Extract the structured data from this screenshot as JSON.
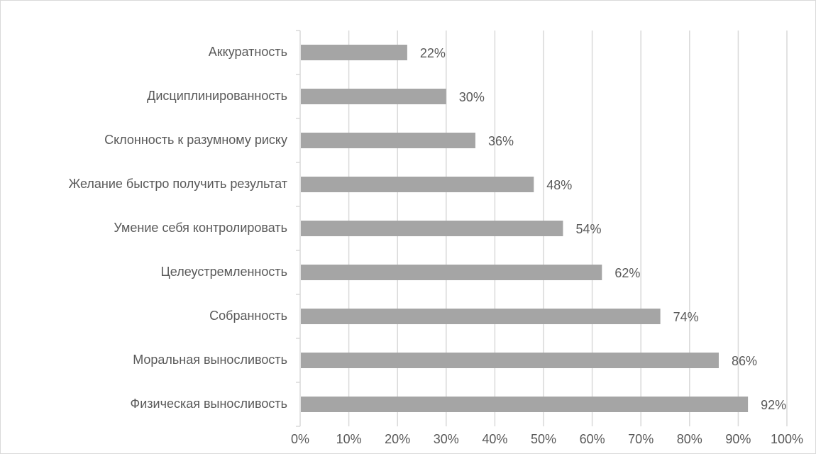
{
  "chart_data": {
    "type": "bar",
    "orientation": "horizontal",
    "categories": [
      "Аккуратность",
      "Дисциплинированность",
      "Склонность к разумному риску",
      "Желание быстро получить результат",
      "Умение себя контролировать",
      "Целеустремленность",
      "Собранность",
      "Моральная выносливость",
      "Физическая выносливость"
    ],
    "values": [
      22,
      30,
      36,
      48,
      54,
      62,
      74,
      86,
      92
    ],
    "data_labels": [
      "22%",
      "30%",
      "36%",
      "48%",
      "54%",
      "62%",
      "74%",
      "86%",
      "92%"
    ],
    "xlim": [
      0,
      100
    ],
    "x_ticks": [
      0,
      10,
      20,
      30,
      40,
      50,
      60,
      70,
      80,
      90,
      100
    ],
    "x_tick_labels": [
      "0%",
      "10%",
      "20%",
      "30%",
      "40%",
      "50%",
      "60%",
      "70%",
      "80%",
      "90%",
      "100%"
    ],
    "grid": "vertical",
    "legend": "none",
    "colors": {
      "bar": "#a5a5a5",
      "grid": "#d9d9d9",
      "text": "#595959"
    }
  }
}
